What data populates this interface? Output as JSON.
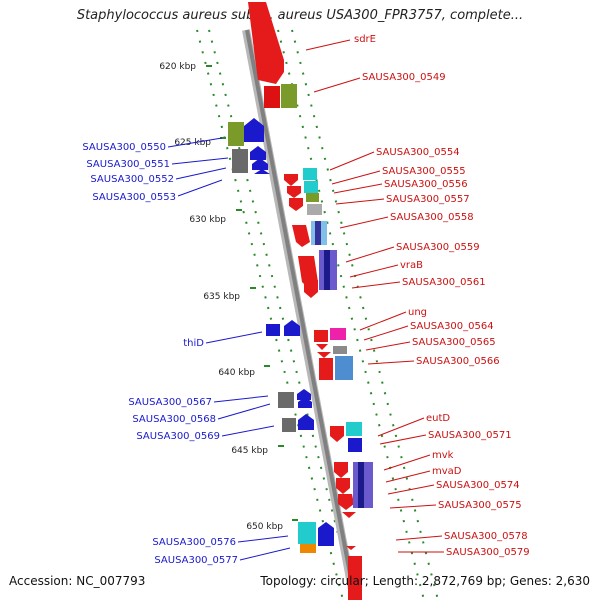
{
  "title": "Staphylococcus aureus subsp. aureus USA300_FPR3757, complete...",
  "footer": {
    "accession": "Accession: NC_007793",
    "summary": "Topology: circular; Length: 2,872,769 bp; Genes: 2,630"
  },
  "colors": {
    "left_label": "#1a1acc",
    "right_label": "#cc1111",
    "backbone": "#909090",
    "ruler_tick": "#2a8a2a"
  },
  "ruler_ticks": [
    "620 kbp",
    "625 kbp",
    "630 kbp",
    "635 kbp",
    "640 kbp",
    "645 kbp",
    "650 kbp"
  ],
  "left_labels": [
    "SAUSA300_0550",
    "SAUSA300_0551",
    "SAUSA300_0552",
    "SAUSA300_0553",
    "thiD",
    "SAUSA300_0567",
    "SAUSA300_0568",
    "SAUSA300_0569",
    "SAUSA300_0576",
    "SAUSA300_0577"
  ],
  "right_labels": [
    "sdrE",
    "SAUSA300_0549",
    "SAUSA300_0554",
    "SAUSA300_0555",
    "SAUSA300_0556",
    "SAUSA300_0557",
    "SAUSA300_0558",
    "SAUSA300_0559",
    "vraB",
    "SAUSA300_0561",
    "ung",
    "SAUSA300_0564",
    "SAUSA300_0565",
    "SAUSA300_0566",
    "eutD",
    "SAUSA300_0571",
    "mvk",
    "mvaD",
    "SAUSA300_0574",
    "SAUSA300_0575",
    "SAUSA300_0578",
    "SAUSA300_0579"
  ]
}
